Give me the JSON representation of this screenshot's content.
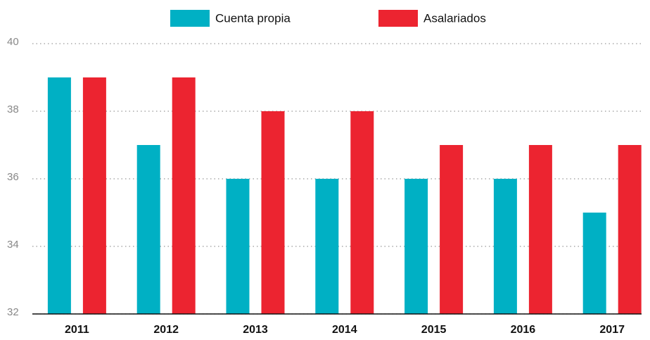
{
  "chart_data": {
    "type": "bar",
    "categories": [
      "2011",
      "2012",
      "2013",
      "2014",
      "2015",
      "2016",
      "2017"
    ],
    "series": [
      {
        "name": "Cuenta propia",
        "color": "#00b0c4",
        "values": [
          39,
          37,
          36,
          36,
          36,
          36,
          35
        ]
      },
      {
        "name": "Asalariados",
        "color": "#ec2430",
        "values": [
          39,
          39,
          38,
          38,
          37,
          37,
          37
        ]
      }
    ],
    "ylim": [
      32,
      40
    ],
    "yticks": [
      32,
      34,
      36,
      38,
      40
    ],
    "grid": true,
    "legend": "top"
  }
}
